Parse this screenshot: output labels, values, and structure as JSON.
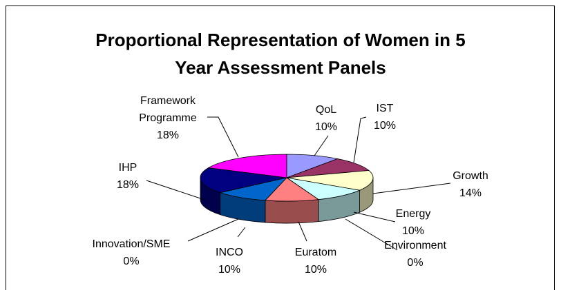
{
  "chart_data": {
    "type": "pie",
    "title": "Proportional Representation of Women in 5 Year Assessment Panels",
    "categories": [
      "QoL",
      "IST",
      "Growth",
      "Energy",
      "Environment",
      "Euratom",
      "INCO",
      "Innovation/SME",
      "IHP",
      "Framework Programme"
    ],
    "values": [
      10,
      10,
      14,
      10,
      0,
      10,
      10,
      0,
      18,
      18
    ],
    "value_labels": [
      "10%",
      "10%",
      "14%",
      "10%",
      "0%",
      "10%",
      "10%",
      "0%",
      "18%",
      "18%"
    ],
    "colors": [
      "#9999ff",
      "#993366",
      "#ffffcc",
      "#ccffff",
      "#660066",
      "#ff8080",
      "#0066cc",
      "#ccccff",
      "#000080",
      "#ff00ff"
    ]
  }
}
